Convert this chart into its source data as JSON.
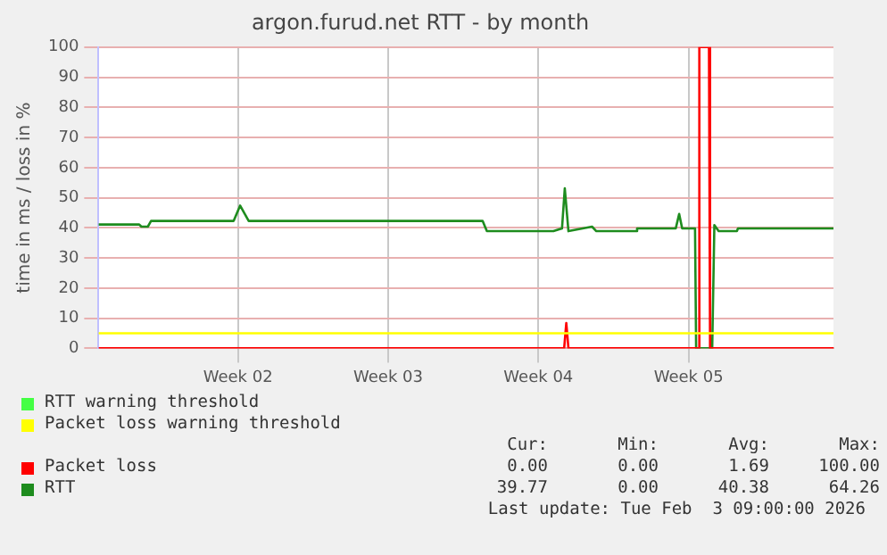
{
  "chart_data": {
    "type": "line",
    "title": "argon.furud.net RTT - by month",
    "ylabel": "time in ms / loss in %",
    "xlim": [
      "2025-12-31T03:00",
      "2026-02-03T09:00"
    ],
    "xticks": [
      {
        "value": "2026-01-06T15:00",
        "label": "Week 02"
      },
      {
        "value": "2026-01-13T15:00",
        "label": "Week 03"
      },
      {
        "value": "2026-01-20T15:00",
        "label": "Week 04"
      },
      {
        "value": "2026-01-27T15:00",
        "label": "Week 05"
      }
    ],
    "ylim": [
      0,
      100
    ],
    "yticks": [
      0,
      10,
      20,
      30,
      40,
      50,
      60,
      70,
      80,
      90,
      100
    ],
    "grid": true,
    "legend": "bottom",
    "marker": "none",
    "line_style": "solid",
    "series": [
      {
        "name": "RTT warning threshold",
        "color": "#44ff44"
      },
      {
        "name": "Packet loss warning threshold",
        "color": "#ffff00",
        "x": [
          "2025-12-31T03:00",
          "2026-02-03T09:00"
        ],
        "values": [
          5,
          5
        ]
      },
      {
        "name": "Packet loss",
        "color": "#ff0000",
        "x": [
          "2025-12-31T03:00",
          "2026-01-21T19:48",
          "2026-01-21T22:12",
          "2026-01-22T00:36",
          "2026-01-28T01:48",
          "2026-01-28T03:00",
          "2026-01-28T13:48",
          "2026-01-28T15:00",
          "2026-02-03T09:00"
        ],
        "values": [
          0,
          0,
          8.4,
          0,
          0,
          100,
          100,
          0,
          0
        ]
      },
      {
        "name": "RTT",
        "color": "#1e8c1e",
        "x": [
          "2025-12-31T03:00",
          "2026-01-02T00:36",
          "2026-01-02T03:00",
          "2026-01-02T10:12",
          "2026-01-02T13:48",
          "2026-01-06T10:12",
          "2026-01-06T17:24",
          "2026-01-07T03:00",
          "2026-01-18T00:36",
          "2026-01-18T05:24",
          "2026-01-21T07:48",
          "2026-01-21T17:24",
          "2026-01-21T20:31",
          "2026-01-22T00:36",
          "2026-01-23T03:00",
          "2026-01-23T07:48",
          "2026-01-25T04:26",
          "2026-01-25T05:24",
          "2026-01-27T00:36",
          "2026-01-27T04:26",
          "2026-01-27T07:48",
          "2026-01-27T22:12",
          "2026-01-27T23:24",
          "2026-01-28T17:24",
          "2026-01-28T19:48",
          "2026-01-29T00:36",
          "2026-01-29T21:00",
          "2026-01-29T22:12",
          "2026-02-03T09:00"
        ],
        "values": [
          41.1,
          41.1,
          40.4,
          40.4,
          42.3,
          42.3,
          47.4,
          42.3,
          42.3,
          38.9,
          38.9,
          39.8,
          53.1,
          38.9,
          40.4,
          38.9,
          38.9,
          39.8,
          39.8,
          44.6,
          39.8,
          39.8,
          0,
          0,
          40.9,
          38.9,
          38.9,
          39.8,
          39.8
        ]
      }
    ],
    "annotations": [
      "Cur:",
      "Min:",
      "Avg:",
      "Max:",
      "0.00",
      "0.00",
      "1.69",
      "100.00",
      "39.77",
      "0.00",
      "40.38",
      "64.26",
      "Last update: Tue Feb  3 09:00:00 2026"
    ]
  }
}
